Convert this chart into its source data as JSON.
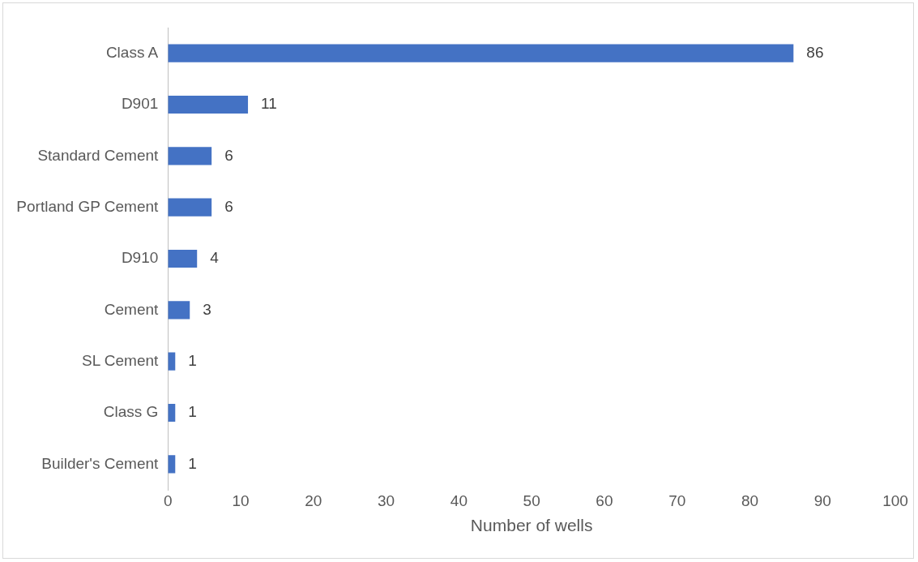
{
  "chart_data": {
    "type": "bar",
    "orientation": "horizontal",
    "xlabel": "Number of wells",
    "categories": [
      "Class A",
      "D901",
      "Standard Cement",
      "Portland GP Cement",
      "D910",
      "Cement",
      "SL Cement",
      "Class G",
      "Builder's Cement"
    ],
    "values": [
      86,
      11,
      6,
      6,
      4,
      3,
      1,
      1,
      1
    ],
    "color": "#4472c4",
    "xlim": [
      0,
      100
    ],
    "xticks": [
      0,
      10,
      20,
      30,
      40,
      50,
      60,
      70,
      80,
      90,
      100
    ],
    "grid": false,
    "legend": false,
    "data_labels": true
  }
}
